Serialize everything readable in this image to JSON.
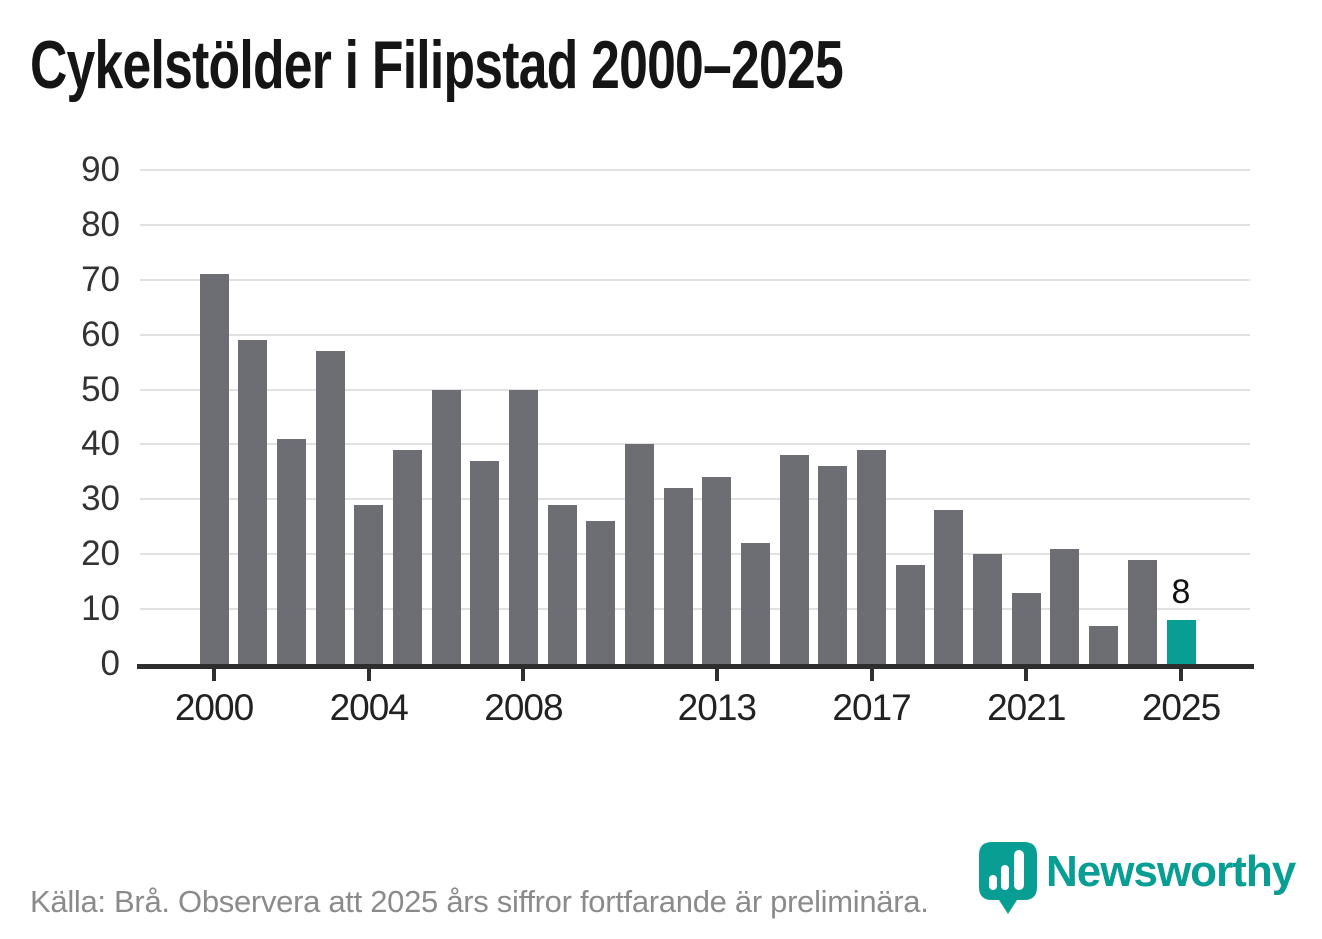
{
  "title": "Cykelstölder i Filipstad 2000–2025",
  "chart_data": {
    "type": "bar",
    "x": [
      2000,
      2001,
      2002,
      2003,
      2004,
      2005,
      2006,
      2007,
      2008,
      2009,
      2010,
      2011,
      2012,
      2013,
      2014,
      2015,
      2016,
      2017,
      2018,
      2019,
      2020,
      2021,
      2022,
      2023,
      2024,
      2025
    ],
    "values": [
      71,
      59,
      41,
      57,
      29,
      39,
      50,
      37,
      50,
      29,
      26,
      40,
      32,
      34,
      22,
      38,
      36,
      39,
      18,
      28,
      20,
      13,
      21,
      7,
      19,
      8
    ],
    "title": "Cykelstölder i Filipstad 2000–2025",
    "xlabel": "",
    "ylabel": "",
    "ylim": [
      0,
      90
    ],
    "yticks": [
      0,
      10,
      20,
      30,
      40,
      50,
      60,
      70,
      80,
      90
    ],
    "xticks": [
      2000,
      2004,
      2008,
      2013,
      2017,
      2021,
      2025
    ],
    "grid": "horizontal",
    "legend": "none",
    "highlight_year": 2025,
    "highlight_value_label": "8",
    "bar_color": "#6d6d74",
    "highlight_color": "#089e94",
    "grid_color": "#e1e1e1",
    "axis_color": "#2e2e2e",
    "tick_label_color": "#333333"
  },
  "footer": {
    "source_text": "Källa: Brå. Observera att 2025 års siffror fortfarande är preliminära."
  },
  "logo": {
    "text": "Newsworthy",
    "color": "#089e94"
  }
}
